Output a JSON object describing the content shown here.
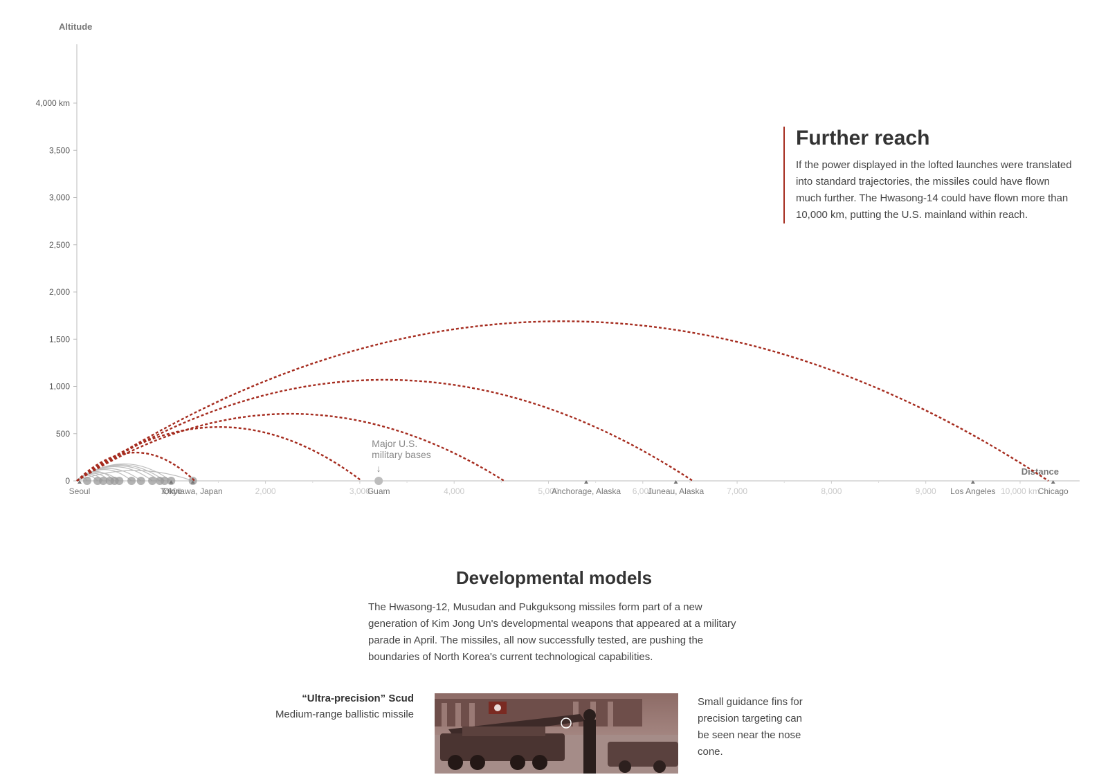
{
  "chart_data": {
    "type": "line",
    "ylabel": "Altitude",
    "xlabel": "Distance",
    "xlim": [
      0,
      10300
    ],
    "ylim": [
      0,
      4400
    ],
    "y_ticks": [
      {
        "value": 0,
        "label": "0"
      },
      {
        "value": 500,
        "label": "500"
      },
      {
        "value": 1000,
        "label": "1,000"
      },
      {
        "value": 1500,
        "label": "1,500"
      },
      {
        "value": 2000,
        "label": "2,000"
      },
      {
        "value": 2500,
        "label": "2,500"
      },
      {
        "value": 3000,
        "label": "3,000"
      },
      {
        "value": 3500,
        "label": "3,500"
      },
      {
        "value": 4000,
        "label": "4,000 km"
      }
    ],
    "x_ticks": [
      {
        "value": 1000,
        "label": "1,000"
      },
      {
        "value": 2000,
        "label": "2,000"
      },
      {
        "value": 3000,
        "label": "3,000"
      },
      {
        "value": 4000,
        "label": "4,000"
      },
      {
        "value": 5000,
        "label": "5,000"
      },
      {
        "value": 6000,
        "label": "6,000"
      },
      {
        "value": 7000,
        "label": "7,000"
      },
      {
        "value": 8000,
        "label": "8,000"
      },
      {
        "value": 9000,
        "label": "9,000"
      },
      {
        "value": 10000,
        "label": "10,000 km"
      }
    ],
    "locations": [
      {
        "name": "Seoul",
        "distance": 0,
        "base": false
      },
      {
        "name": "Tokyo",
        "distance": 1000,
        "base": true
      },
      {
        "name": "Okinawa, Japan",
        "distance": 1230,
        "base": true
      },
      {
        "name": "Guam",
        "distance": 3200,
        "base": true
      },
      {
        "name": "Anchorage, Alaska",
        "distance": 5400,
        "base": false
      },
      {
        "name": "Juneau, Alaska",
        "distance": 6350,
        "base": false
      },
      {
        "name": "Los Angeles",
        "distance": 9500,
        "base": false
      },
      {
        "name": "Chicago",
        "distance": 10350,
        "base": false
      }
    ],
    "annotation": {
      "lines": [
        "Major U.S.",
        "military bases"
      ],
      "arrow": "↓",
      "distance": 3200
    },
    "standard_trajectories": {
      "color": "#a52b1e",
      "style": "dashed",
      "series": [
        {
          "range": 1250,
          "apogee": 300
        },
        {
          "range": 3020,
          "apogee": 570
        },
        {
          "range": 4530,
          "apogee": 710
        },
        {
          "range": 6530,
          "apogee": 1070
        },
        {
          "range": 10300,
          "apogee": 1690
        }
      ]
    },
    "past_launches": {
      "color": "#bdbdbd",
      "series": [
        {
          "range": 110,
          "apogee": 40
        },
        {
          "range": 220,
          "apogee": 60
        },
        {
          "range": 280,
          "apogee": 70
        },
        {
          "range": 350,
          "apogee": 80
        },
        {
          "range": 400,
          "apogee": 100
        },
        {
          "range": 450,
          "apogee": 90
        },
        {
          "range": 580,
          "apogee": 120
        },
        {
          "range": 680,
          "apogee": 130
        },
        {
          "range": 800,
          "apogee": 150
        },
        {
          "range": 880,
          "apogee": 160
        },
        {
          "range": 930,
          "apogee": 170
        },
        {
          "range": 1000,
          "apogee": 180
        },
        {
          "range": 1230,
          "apogee": 110
        }
      ]
    }
  },
  "further_reach": {
    "title": "Further reach",
    "body": "If the power displayed in the lofted launches were translated into standard trajectories, the missiles could have flown much further. The Hwasong-14 could have flown more than 10,000 km, putting the U.S. mainland within reach."
  },
  "developmental": {
    "title": "Developmental models",
    "body": "The Hwasong-12, Musudan and Pukguksong missiles form part of a new generation of Kim Jong Un's developmental weapons that appeared at a military parade in April. The missiles, all now successfully tested, are pushing the boundaries of North Korea's current technological capabilities."
  },
  "scud": {
    "name": "“Ultra-precision” Scud",
    "type": "Medium-range ballistic missile",
    "note": "Small guidance fins for precision targeting can be seen near the nose cone."
  },
  "colors": {
    "accent": "#a52b1e",
    "axis": "#bbbbbb",
    "text": "#333333"
  }
}
